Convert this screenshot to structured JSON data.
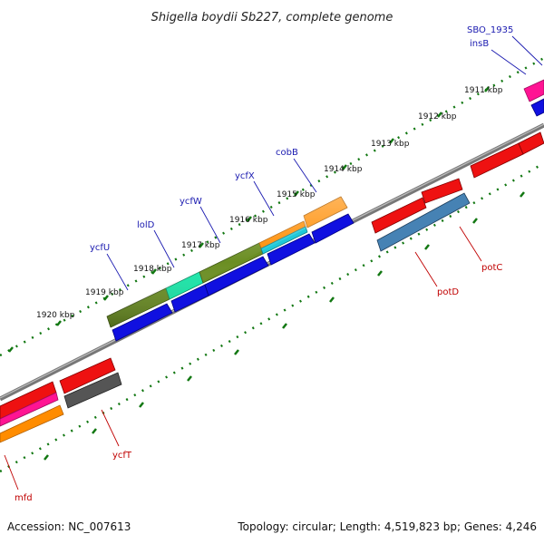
{
  "title": "Shigella boydii Sb227, complete genome",
  "footer": {
    "accession": "Accession: NC_007613",
    "topology": "Topology: circular; Length: 4,519,823 bp; Genes: 4,246"
  },
  "ticks": [
    "1911 kbp",
    "1912 kbp",
    "1913 kbp",
    "1914 kbp",
    "1915 kbp",
    "1916 kbp",
    "1917 kbp",
    "1918 kbp",
    "1919 kbp",
    "1920 kbp"
  ],
  "gene_labels_outer": [
    "SBO_1935",
    "insB",
    "cobB",
    "ycfX",
    "ycfW",
    "lolD",
    "ycfU"
  ],
  "gene_labels_inner": [
    "potC",
    "potD",
    "ycfT",
    "mfd"
  ],
  "colors": {
    "red": "#ee1111",
    "blue": "#1010e0",
    "olive": "#6b8e23",
    "aqua": "#19e6a8",
    "orange": "#ff8c00",
    "cyan": "#1ec8d8",
    "steel": "#4682b4",
    "gray": "#555555",
    "pink": "#ff1493",
    "backbone": "#888888",
    "tick_green": "#117711"
  }
}
